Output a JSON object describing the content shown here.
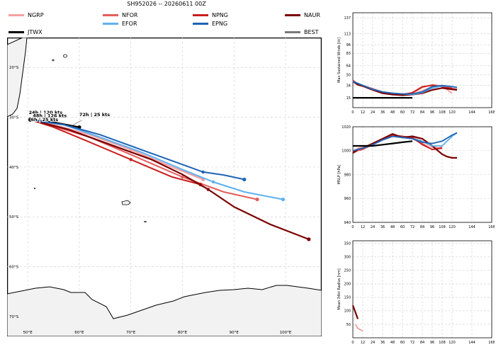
{
  "title": "SH952026 -- 20260611 00Z",
  "colors": {
    "NGRP": "#f4a0a0",
    "NFOR": "#e55c5c",
    "NPNG": "#c81e1e",
    "NAUR": "#7a0000",
    "EFOR": "#5eb0f0",
    "EPNG": "#1e64b4",
    "JTWX": "#000000",
    "BEST": "#7a7a7a"
  },
  "chart_data": [
    {
      "type": "map-track",
      "legend": [
        "NGRP",
        "NFOR",
        "NPNG",
        "NAUR",
        "JTWX",
        "EFOR",
        "EPNG",
        "BEST"
      ],
      "lon_ticks": [
        "50°E",
        "60°E",
        "70°E",
        "80°E",
        "90°E",
        "100°E"
      ],
      "lat_ticks": [
        "20°S",
        "30°S",
        "40°S",
        "50°S",
        "60°S",
        "70°S"
      ],
      "xlim": [
        46,
        107
      ],
      "ylim": [
        -74,
        -14
      ],
      "annotations": [
        {
          "text": "24h | 120 kts",
          "lon": 50.2,
          "lat": -29.8
        },
        {
          "text": "48h | 126 kts",
          "lon": 51.0,
          "lat": -30.4
        },
        {
          "text": "6h | 25 kts",
          "lon": 50.6,
          "lat": -31.2
        },
        {
          "text": "72h | 25 kts",
          "lon": 60.0,
          "lat": -30.2
        }
      ],
      "tracks": [
        {
          "name": "NGRP",
          "points": [
            [
              50.5,
              -30.5
            ],
            [
              55,
              -31.5
            ],
            [
              62,
              -33.5
            ],
            [
              70,
              -36.5
            ],
            [
              78,
              -40
            ],
            [
              84,
              -42.5
            ]
          ]
        },
        {
          "name": "NFOR",
          "points": [
            [
              50.5,
              -30.5
            ],
            [
              54,
              -31.5
            ],
            [
              62,
              -34
            ],
            [
              70,
              -37.5
            ],
            [
              80,
              -42
            ],
            [
              88,
              -45
            ],
            [
              94.5,
              -46.5
            ]
          ]
        },
        {
          "name": "NPNG",
          "points": [
            [
              50.5,
              -30.5
            ],
            [
              55,
              -32
            ],
            [
              62,
              -35
            ],
            [
              70,
              -38.5
            ],
            [
              78,
              -42
            ],
            [
              83.5,
              -43.5
            ]
          ]
        },
        {
          "name": "NAUR",
          "points": [
            [
              50.5,
              -30.5
            ],
            [
              58,
              -32.5
            ],
            [
              66,
              -35.5
            ],
            [
              74,
              -38.5
            ],
            [
              80,
              -41.5
            ],
            [
              85,
              -44.5
            ],
            [
              90,
              -48
            ],
            [
              97,
              -51.5
            ],
            [
              104.5,
              -54.5
            ]
          ]
        },
        {
          "name": "JTWX",
          "points": [
            [
              50.5,
              -30.5
            ],
            [
              55,
              -31
            ],
            [
              60,
              -32
            ]
          ]
        },
        {
          "name": "EFOR",
          "points": [
            [
              50.5,
              -30.5
            ],
            [
              57,
              -31.5
            ],
            [
              64,
              -34
            ],
            [
              72,
              -37
            ],
            [
              80,
              -40.5
            ],
            [
              86,
              -43
            ],
            [
              92,
              -45
            ],
            [
              99.5,
              -46.5
            ]
          ]
        },
        {
          "name": "EPNG",
          "points": [
            [
              50.5,
              -30.5
            ],
            [
              57,
              -31.5
            ],
            [
              64,
              -33.5
            ],
            [
              72,
              -36.5
            ],
            [
              80,
              -39.5
            ],
            [
              84,
              -41
            ],
            [
              88,
              -41.6
            ],
            [
              92,
              -42.5
            ]
          ]
        }
      ]
    },
    {
      "type": "line",
      "ylabel": "Max Sustained Winds [kt]",
      "ylim": [
        0,
        145
      ],
      "xlim": [
        0,
        168
      ],
      "x_ticks": [
        0,
        12,
        24,
        36,
        48,
        60,
        72,
        84,
        96,
        108,
        120,
        144,
        168
      ],
      "y_ticks": [
        15,
        34,
        50,
        64,
        83,
        96,
        113,
        137
      ],
      "series": [
        {
          "name": "NGRP",
          "x": [
            0,
            6,
            12,
            24,
            36,
            48,
            60,
            72,
            84,
            96,
            108,
            120
          ],
          "values": [
            40,
            35,
            33,
            27,
            22,
            21,
            20,
            20,
            26,
            32,
            33,
            22
          ]
        },
        {
          "name": "NFOR",
          "x": [
            0,
            6,
            12,
            24,
            36,
            48,
            60,
            72,
            84,
            96,
            108,
            120
          ],
          "values": [
            42,
            36,
            34,
            29,
            24,
            22,
            21,
            22,
            31,
            35,
            33,
            30
          ]
        },
        {
          "name": "NPNG",
          "x": [
            0,
            6,
            12,
            24,
            36,
            48,
            60,
            72,
            84,
            96,
            108,
            120,
            126
          ],
          "values": [
            41,
            36,
            33,
            28,
            23,
            21,
            20,
            23,
            32,
            34,
            32,
            29,
            28
          ]
        },
        {
          "name": "NAUR",
          "x": [
            0,
            6,
            12,
            24,
            36,
            48,
            60,
            72,
            84,
            96,
            108,
            120,
            126
          ],
          "values": [
            40,
            35,
            33,
            27,
            22,
            20,
            19,
            20,
            22,
            27,
            30,
            28,
            27
          ]
        },
        {
          "name": "EFOR",
          "x": [
            0,
            12,
            24,
            36,
            48,
            60,
            72,
            84,
            96,
            108,
            120,
            126
          ],
          "values": [
            40,
            34,
            28,
            24,
            22,
            21,
            20,
            23,
            30,
            33,
            32,
            31
          ]
        },
        {
          "name": "EPNG",
          "x": [
            0,
            12,
            24,
            36,
            48,
            60,
            72,
            84,
            96,
            108,
            120,
            126
          ],
          "values": [
            40,
            34,
            28,
            24,
            22,
            21,
            21,
            24,
            32,
            34,
            32,
            31
          ]
        },
        {
          "name": "JTWX",
          "x": [
            0,
            12,
            24,
            36,
            48,
            60,
            72
          ],
          "values": [
            15,
            15,
            15,
            15,
            15,
            15,
            15
          ]
        }
      ]
    },
    {
      "type": "line",
      "ylabel": "MSLP [hPa]",
      "ylim": [
        940,
        1020
      ],
      "xlim": [
        0,
        168
      ],
      "x_ticks": [
        0,
        12,
        24,
        36,
        48,
        60,
        72,
        84,
        96,
        108,
        120,
        144,
        168
      ],
      "y_ticks": [
        940,
        960,
        980,
        1000,
        1020
      ],
      "series": [
        {
          "name": "NGRP",
          "x": [
            0,
            6,
            12,
            24,
            36,
            48,
            60,
            72,
            84,
            96,
            108
          ],
          "values": [
            999,
            1002,
            1003,
            1006,
            1010,
            1013,
            1012,
            1011,
            1008,
            1003,
            1002
          ]
        },
        {
          "name": "NFOR",
          "x": [
            0,
            6,
            12,
            24,
            36,
            48,
            60,
            72,
            84,
            96,
            108
          ],
          "values": [
            998,
            1000,
            1001,
            1005,
            1009,
            1012,
            1011,
            1010,
            1006,
            1001,
            1003
          ]
        },
        {
          "name": "NPNG",
          "x": [
            0,
            6,
            12,
            24,
            36,
            48,
            60,
            72,
            84,
            96,
            108
          ],
          "values": [
            999,
            1001,
            1002,
            1006,
            1010,
            1013,
            1012,
            1011,
            1005,
            1001,
            1002
          ]
        },
        {
          "name": "NAUR",
          "x": [
            0,
            6,
            12,
            24,
            36,
            48,
            60,
            72,
            84,
            96,
            108,
            114,
            120,
            126
          ],
          "values": [
            998,
            1001,
            1002,
            1006,
            1010,
            1014,
            1011,
            1012,
            1010,
            1004,
            997,
            995,
            994,
            994
          ]
        },
        {
          "name": "EFOR",
          "x": [
            0,
            12,
            24,
            36,
            48,
            60,
            72,
            84,
            96,
            108,
            120,
            126
          ],
          "values": [
            1000,
            1002,
            1005,
            1009,
            1012,
            1011,
            1010,
            1008,
            1004,
            1004,
            1012,
            1015
          ]
        },
        {
          "name": "EPNG",
          "x": [
            0,
            12,
            24,
            36,
            48,
            60,
            72,
            84,
            96,
            108,
            120,
            126
          ],
          "values": [
            1000,
            1002,
            1005,
            1009,
            1012,
            1011,
            1010,
            1007,
            1006,
            1008,
            1013,
            1015
          ]
        },
        {
          "name": "JTWX",
          "x": [
            0,
            12,
            24,
            36,
            48,
            60,
            72
          ],
          "values": [
            1004,
            1004,
            1004,
            1005,
            1006,
            1007,
            1008
          ]
        }
      ]
    },
    {
      "type": "line",
      "ylabel": "Mean 34kt Radius [nm]",
      "ylim": [
        0,
        360
      ],
      "xlim": [
        0,
        168
      ],
      "x_ticks": [
        0,
        12,
        24,
        36,
        48,
        60,
        72,
        84,
        96,
        108,
        120,
        144,
        168
      ],
      "y_ticks": [
        50,
        100,
        150,
        200,
        250,
        300,
        350
      ],
      "series": [
        {
          "name": "NGRP",
          "x": [
            3,
            6,
            9,
            12
          ],
          "values": [
            50,
            35,
            30,
            25
          ]
        },
        {
          "name": "NAUR",
          "x": [
            0,
            3,
            6
          ],
          "values": [
            120,
            95,
            70
          ]
        }
      ]
    }
  ]
}
